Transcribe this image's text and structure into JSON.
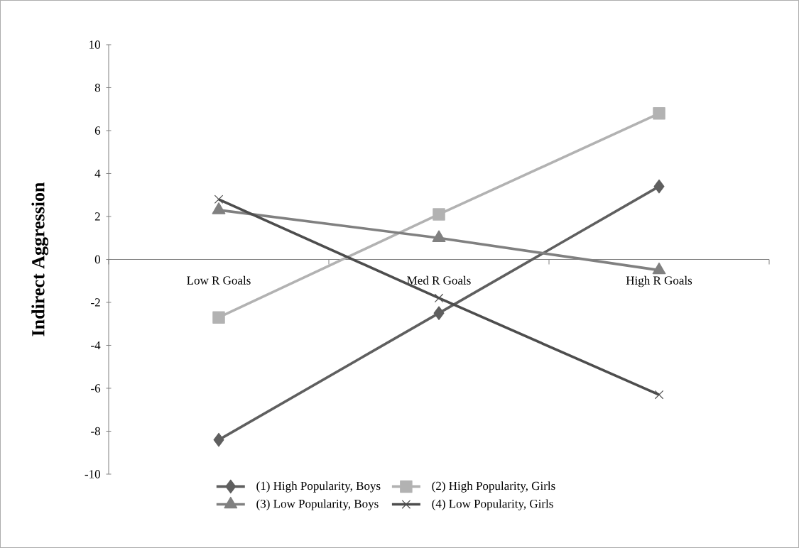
{
  "chart_data": {
    "type": "line",
    "ylabel": "Indirect Aggression",
    "categories": [
      "Low R Goals",
      "Med R Goals",
      "High R Goals"
    ],
    "series": [
      {
        "name": "(1) High Popularity, Boys",
        "color": "#5f5f5f",
        "marker": "diamond",
        "values": [
          -8.4,
          -2.5,
          3.4
        ]
      },
      {
        "name": "(2) High Popularity, Girls",
        "color": "#b2b2b2",
        "marker": "square",
        "values": [
          -2.7,
          2.1,
          6.8
        ]
      },
      {
        "name": "(3) Low Popularity, Boys",
        "color": "#808080",
        "marker": "triangle",
        "values": [
          2.3,
          1.0,
          -0.5
        ]
      },
      {
        "name": "(4) Low Popularity, Girls",
        "color": "#4d4d4d",
        "marker": "cross",
        "values": [
          2.8,
          -1.8,
          -6.3
        ]
      }
    ],
    "ylim": [
      -10,
      10
    ],
    "yticks": [
      -10,
      -8,
      -6,
      -4,
      -2,
      0,
      2,
      4,
      6,
      8,
      10
    ],
    "legend": "bottom"
  }
}
